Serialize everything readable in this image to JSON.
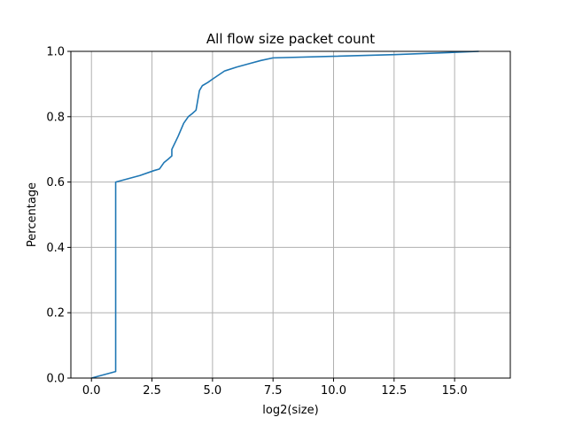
{
  "chart_data": {
    "type": "line",
    "title": "All flow size packet count",
    "xlabel": "log2(size)",
    "ylabel": "Percentage",
    "xlim": [
      -0.85,
      17.3
    ],
    "ylim": [
      0.0,
      1.0
    ],
    "xticks": [
      "0.0",
      "2.5",
      "5.0",
      "7.5",
      "10.0",
      "12.5",
      "15.0"
    ],
    "xtick_values": [
      0,
      2.5,
      5,
      7.5,
      10,
      12.5,
      15
    ],
    "yticks": [
      "0.0",
      "0.2",
      "0.4",
      "0.6",
      "0.8",
      "1.0"
    ],
    "ytick_values": [
      0,
      0.2,
      0.4,
      0.6,
      0.8,
      1.0
    ],
    "grid": true,
    "legend": false,
    "series": [
      {
        "color": "#1f77b4",
        "x": [
          0.0,
          1.0,
          1.0,
          2.0,
          2.58,
          2.81,
          3.0,
          3.17,
          3.32,
          3.32,
          3.58,
          3.81,
          4.0,
          4.17,
          4.32,
          4.46,
          4.58,
          4.81,
          5.0,
          5.5,
          6.0,
          6.5,
          7.0,
          7.5,
          10.0,
          12.5,
          15.0,
          16.0
        ],
        "y": [
          0.0,
          0.02,
          0.6,
          0.62,
          0.635,
          0.64,
          0.66,
          0.67,
          0.68,
          0.7,
          0.74,
          0.78,
          0.8,
          0.81,
          0.82,
          0.88,
          0.895,
          0.905,
          0.915,
          0.94,
          0.952,
          0.962,
          0.972,
          0.98,
          0.985,
          0.99,
          0.997,
          1.0
        ]
      }
    ]
  }
}
